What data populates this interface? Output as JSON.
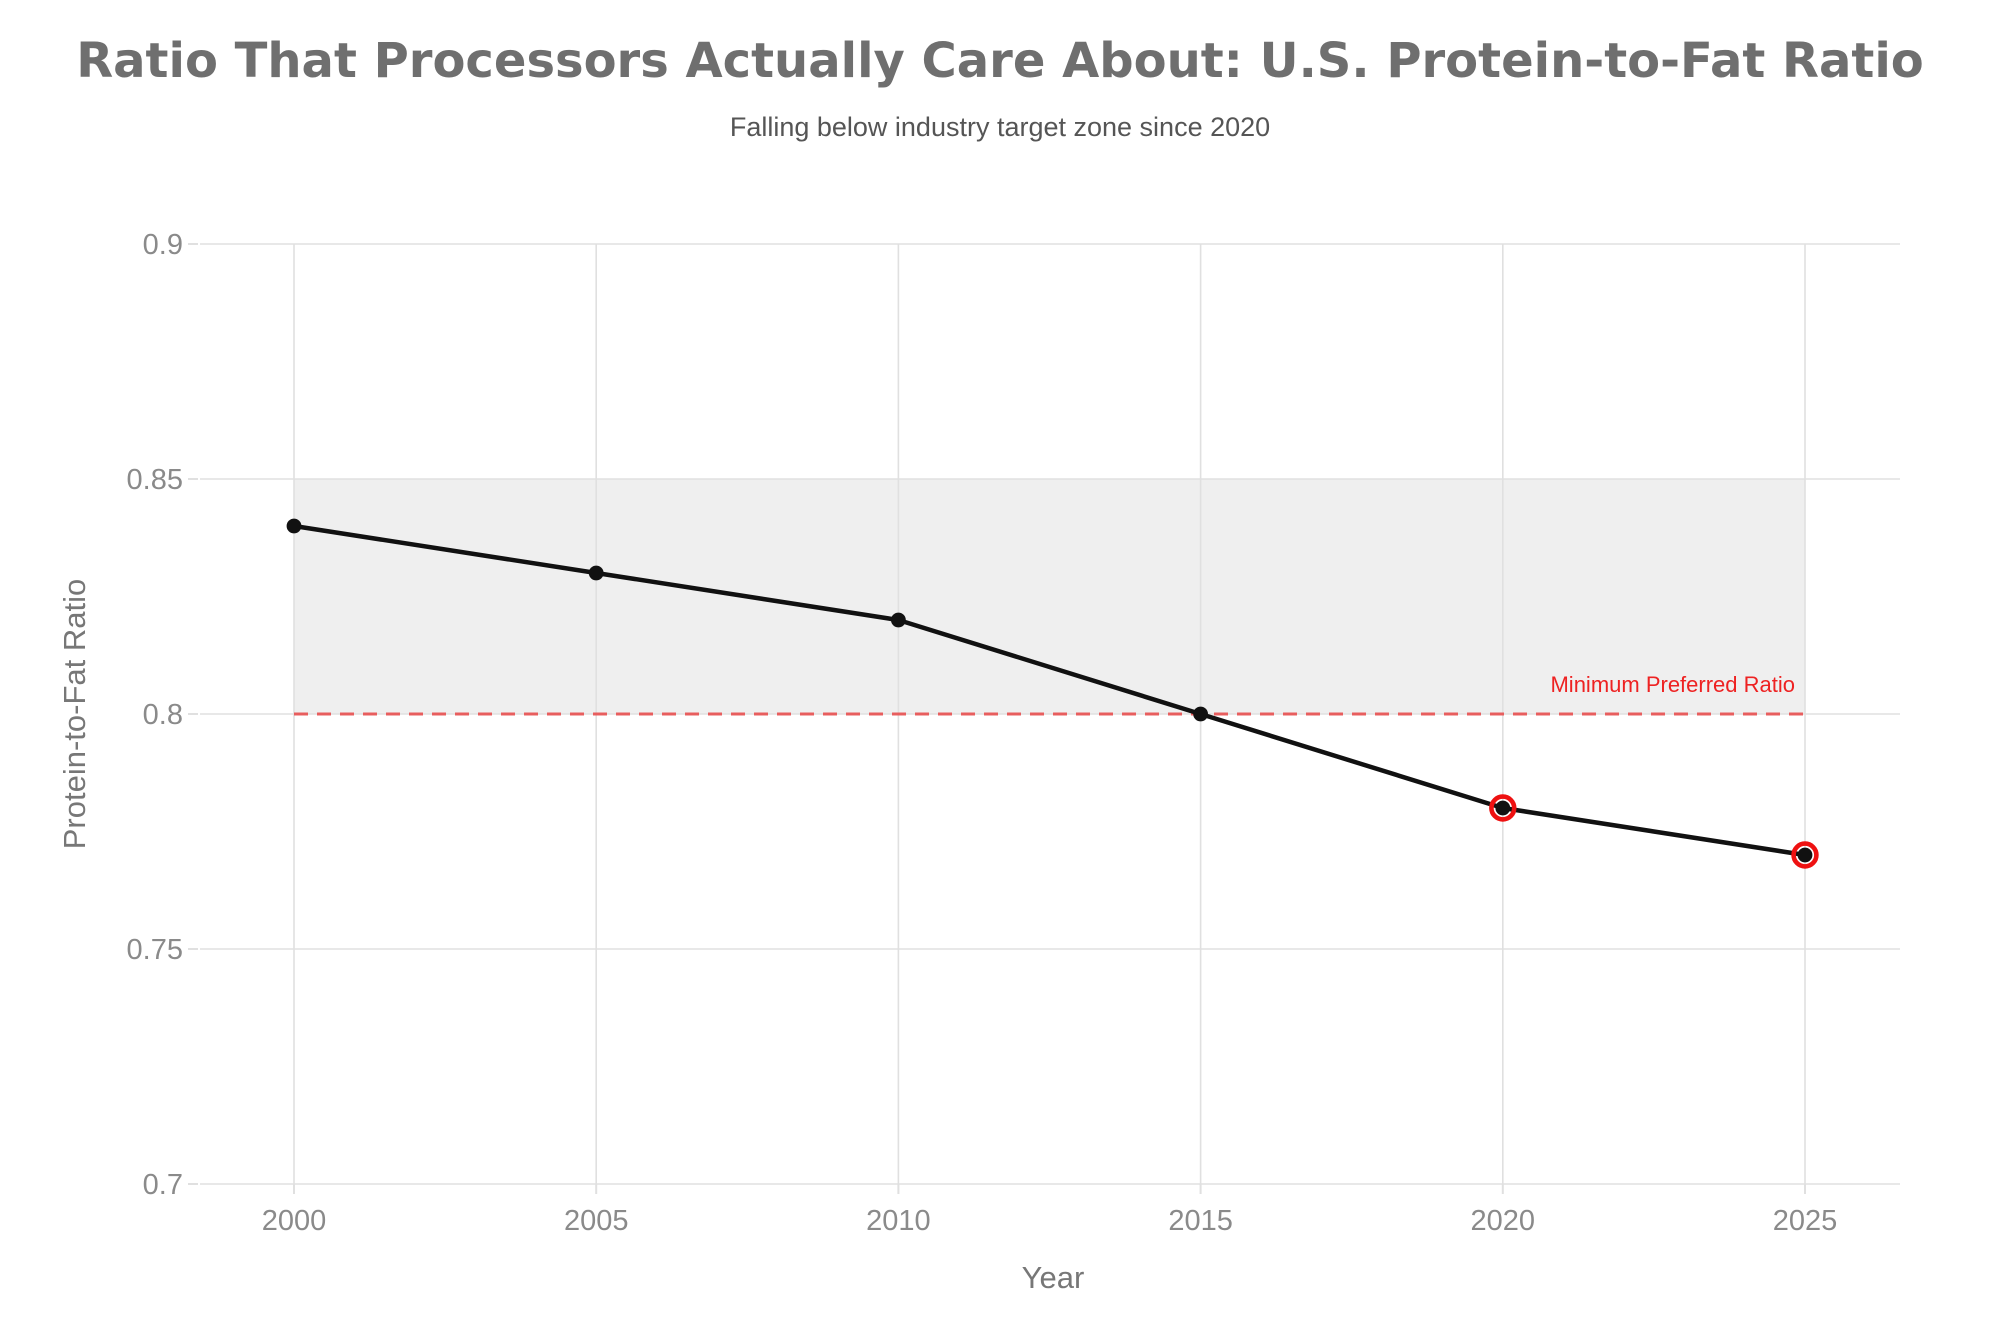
{
  "chart_data": {
    "type": "line",
    "title": "Ratio That Processors Actually Care About: U.S. Protein-to-Fat Ratio",
    "subtitle": "Falling below industry target zone since 2020",
    "xlabel": "Year",
    "ylabel": "Protein-to-Fat Ratio",
    "x": [
      2000,
      2005,
      2010,
      2015,
      2020,
      2025
    ],
    "series": [
      {
        "name": "U.S. protein-to-fat ratio",
        "values": [
          0.84,
          0.83,
          0.82,
          0.8,
          0.78,
          0.77
        ],
        "color": "#111111"
      }
    ],
    "ylim": [
      0.7,
      0.9
    ],
    "yticks": [
      0.7,
      0.75,
      0.8,
      0.85,
      0.9
    ],
    "ytick_labels": [
      "0.7",
      "0.75",
      "0.8",
      "0.85",
      "0.9"
    ],
    "xticks": [
      2000,
      2005,
      2010,
      2015,
      2020,
      2025
    ],
    "xtick_labels": [
      "2000",
      "2005",
      "2010",
      "2015",
      "2020",
      "2025"
    ],
    "grid": true,
    "legend": "none",
    "target_zone": {
      "from": 0.8,
      "to": 0.85,
      "fill": "#efefef"
    },
    "threshold_line": {
      "value": 0.8,
      "style": "dashed",
      "color": "#e85050",
      "label": "Minimum Preferred Ratio",
      "label_color": "#ee2222"
    },
    "highlighted_years": [
      2020,
      2025
    ],
    "highlight_ring_color": "#ee1111"
  },
  "colors": {
    "background": "#ffffff",
    "title": "#6f6f6f",
    "subtitle": "#555555",
    "axis_text": "#8a8a8a",
    "axis_title": "#777777",
    "grid": "#e0e0e0"
  }
}
